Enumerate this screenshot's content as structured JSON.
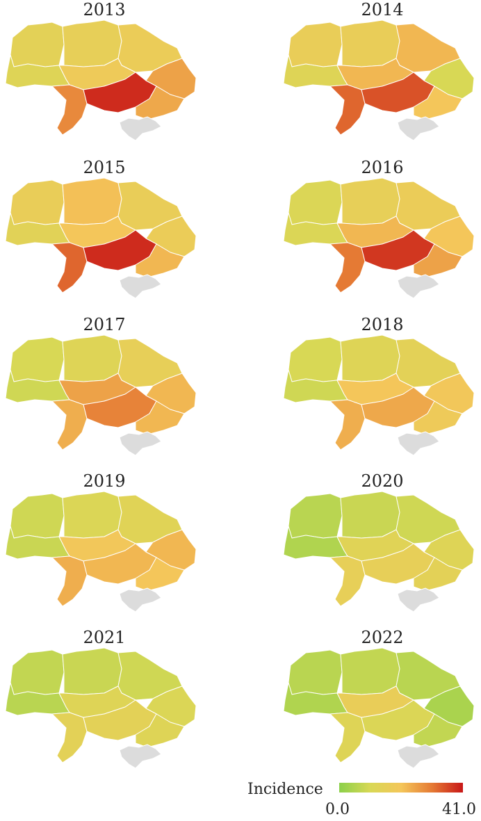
{
  "legend": {
    "title": "Incidence",
    "min": "0.0",
    "max": "41.0",
    "colors": [
      "#8bd04a",
      "#d8d855",
      "#f4c65a",
      "#e57a34",
      "#c81717"
    ]
  },
  "colors": {
    "crimea": "#dcdcdc",
    "border": "#ffffff"
  },
  "panels": [
    {
      "year": "2013",
      "levels": {
        "nw": 0.35,
        "n": 0.38,
        "ne": 0.42,
        "w": 0.3,
        "c": 0.45,
        "e": 0.62,
        "sw": 0.7,
        "s": 0.95,
        "se": 0.6
      }
    },
    {
      "year": "2014",
      "levels": {
        "nw": 0.4,
        "n": 0.4,
        "ne": 0.55,
        "w": 0.3,
        "c": 0.55,
        "e": 0.25,
        "sw": 0.8,
        "s": 0.85,
        "se": 0.5
      }
    },
    {
      "year": "2015",
      "levels": {
        "nw": 0.4,
        "n": 0.52,
        "ne": 0.4,
        "w": 0.33,
        "c": 0.5,
        "e": 0.42,
        "sw": 0.8,
        "s": 0.95,
        "se": 0.55
      }
    },
    {
      "year": "2016",
      "levels": {
        "nw": 0.28,
        "n": 0.38,
        "ne": 0.42,
        "w": 0.28,
        "c": 0.55,
        "e": 0.5,
        "sw": 0.75,
        "s": 0.92,
        "se": 0.62
      }
    },
    {
      "year": "2017",
      "levels": {
        "nw": 0.25,
        "n": 0.3,
        "ne": 0.38,
        "w": 0.22,
        "c": 0.62,
        "e": 0.55,
        "sw": 0.58,
        "s": 0.72,
        "se": 0.55
      }
    },
    {
      "year": "2018",
      "levels": {
        "nw": 0.25,
        "n": 0.3,
        "ne": 0.35,
        "w": 0.22,
        "c": 0.5,
        "e": 0.48,
        "sw": 0.58,
        "s": 0.6,
        "se": 0.45
      }
    },
    {
      "year": "2019",
      "levels": {
        "nw": 0.22,
        "n": 0.28,
        "ne": 0.32,
        "w": 0.2,
        "c": 0.48,
        "e": 0.55,
        "sw": 0.58,
        "s": 0.55,
        "se": 0.5
      }
    },
    {
      "year": "2020",
      "levels": {
        "nw": 0.15,
        "n": 0.2,
        "ne": 0.22,
        "w": 0.12,
        "c": 0.32,
        "e": 0.3,
        "sw": 0.38,
        "s": 0.38,
        "se": 0.35
      }
    },
    {
      "year": "2021",
      "levels": {
        "nw": 0.18,
        "n": 0.2,
        "ne": 0.22,
        "w": 0.15,
        "c": 0.3,
        "e": 0.28,
        "sw": 0.35,
        "s": 0.35,
        "se": 0.3
      }
    },
    {
      "year": "2022",
      "levels": {
        "nw": 0.15,
        "n": 0.18,
        "ne": 0.15,
        "w": 0.12,
        "c": 0.4,
        "e": 0.1,
        "sw": 0.3,
        "s": 0.28,
        "se": 0.18
      }
    }
  ]
}
